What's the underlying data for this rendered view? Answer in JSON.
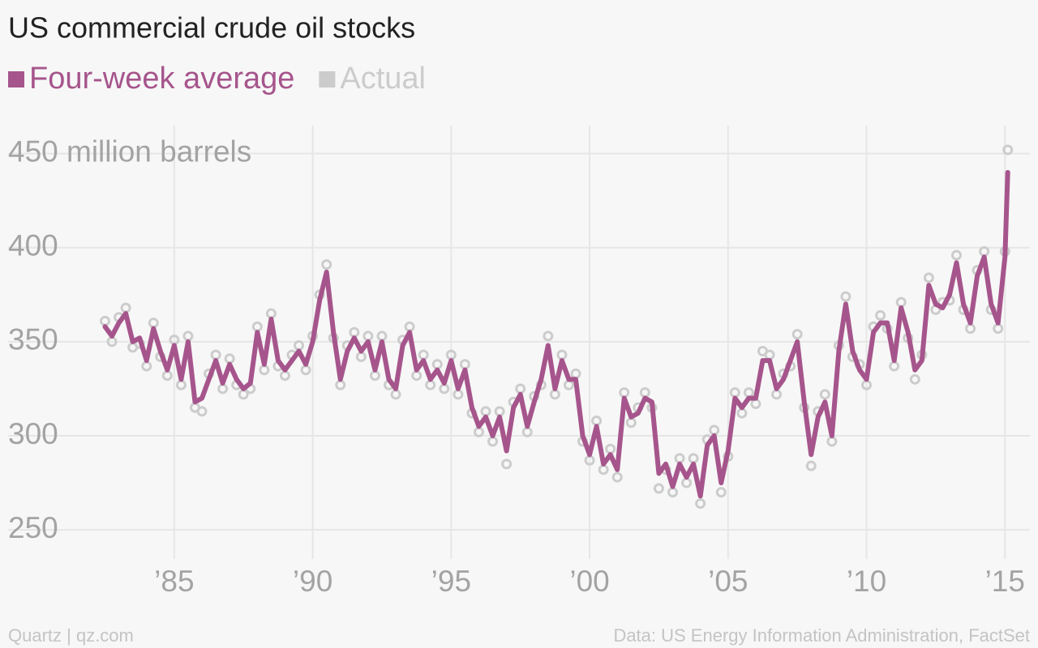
{
  "chart_data": {
    "type": "line",
    "title": "US commercial crude oil stocks",
    "credit": "Quartz | qz.com",
    "source": "Data: US Energy Information Administration, FactSet",
    "x": [
      1982.5,
      1982.75,
      1983,
      1983.25,
      1983.5,
      1983.75,
      1984,
      1984.25,
      1984.5,
      1984.75,
      1985,
      1985.25,
      1985.5,
      1985.75,
      1986,
      1986.25,
      1986.5,
      1986.75,
      1987,
      1987.25,
      1987.5,
      1987.75,
      1988,
      1988.25,
      1988.5,
      1988.75,
      1989,
      1989.25,
      1989.5,
      1989.75,
      1990,
      1990.25,
      1990.5,
      1990.75,
      1991,
      1991.25,
      1991.5,
      1991.75,
      1992,
      1992.25,
      1992.5,
      1992.75,
      1993,
      1993.25,
      1993.5,
      1993.75,
      1994,
      1994.25,
      1994.5,
      1994.75,
      1995,
      1995.25,
      1995.5,
      1995.75,
      1996,
      1996.25,
      1996.5,
      1996.75,
      1997,
      1997.25,
      1997.5,
      1997.75,
      1998,
      1998.25,
      1998.5,
      1998.75,
      1999,
      1999.25,
      1999.5,
      1999.75,
      2000,
      2000.25,
      2000.5,
      2000.75,
      2001,
      2001.25,
      2001.5,
      2001.75,
      2002,
      2002.25,
      2002.5,
      2002.75,
      2003,
      2003.25,
      2003.5,
      2003.75,
      2004,
      2004.25,
      2004.5,
      2004.75,
      2005,
      2005.25,
      2005.5,
      2005.75,
      2006,
      2006.25,
      2006.5,
      2006.75,
      2007,
      2007.25,
      2007.5,
      2007.75,
      2008,
      2008.25,
      2008.5,
      2008.75,
      2009,
      2009.25,
      2009.5,
      2009.75,
      2010,
      2010.25,
      2010.5,
      2010.75,
      2011,
      2011.25,
      2011.5,
      2011.75,
      2012,
      2012.25,
      2012.5,
      2012.75,
      2013,
      2013.25,
      2013.5,
      2013.75,
      2014,
      2014.25,
      2014.5,
      2014.75,
      2015,
      2015.1
    ],
    "series": [
      {
        "name": "Four-week average",
        "color": "#a6558c",
        "values": [
          358,
          353,
          360,
          365,
          350,
          352,
          340,
          357,
          345,
          335,
          348,
          330,
          350,
          318,
          320,
          330,
          340,
          328,
          338,
          330,
          325,
          328,
          355,
          338,
          362,
          340,
          335,
          340,
          345,
          338,
          350,
          372,
          387,
          355,
          330,
          345,
          352,
          345,
          350,
          335,
          350,
          330,
          325,
          348,
          355,
          335,
          340,
          330,
          335,
          328,
          340,
          325,
          335,
          315,
          305,
          310,
          300,
          310,
          292,
          315,
          322,
          305,
          318,
          330,
          348,
          325,
          340,
          330,
          330,
          300,
          290,
          305,
          285,
          290,
          282,
          320,
          310,
          312,
          320,
          318,
          280,
          285,
          273,
          285,
          278,
          285,
          268,
          295,
          300,
          275,
          292,
          320,
          315,
          320,
          320,
          340,
          340,
          325,
          330,
          340,
          350,
          318,
          290,
          310,
          318,
          300,
          345,
          370,
          345,
          335,
          330,
          355,
          360,
          360,
          340,
          368,
          355,
          335,
          340,
          380,
          370,
          368,
          375,
          392,
          370,
          360,
          385,
          395,
          370,
          360,
          395,
          440
        ]
      },
      {
        "name": "Actual",
        "color": "#cccccc",
        "values": [
          361,
          350,
          363,
          368,
          347,
          349,
          337,
          360,
          342,
          332,
          351,
          327,
          353,
          315,
          313,
          333,
          343,
          325,
          341,
          327,
          322,
          325,
          358,
          335,
          365,
          337,
          332,
          343,
          348,
          335,
          353,
          375,
          391,
          352,
          327,
          348,
          355,
          342,
          353,
          332,
          353,
          327,
          322,
          351,
          358,
          332,
          343,
          327,
          338,
          325,
          343,
          322,
          338,
          312,
          302,
          313,
          297,
          313,
          285,
          318,
          325,
          302,
          321,
          327,
          353,
          322,
          343,
          327,
          333,
          297,
          287,
          308,
          282,
          293,
          278,
          323,
          307,
          315,
          323,
          315,
          272,
          282,
          270,
          288,
          275,
          288,
          264,
          298,
          303,
          270,
          289,
          323,
          312,
          323,
          317,
          345,
          343,
          322,
          333,
          337,
          354,
          315,
          284,
          313,
          322,
          297,
          348,
          374,
          342,
          338,
          327,
          358,
          364,
          357,
          337,
          371,
          352,
          330,
          343,
          384,
          367,
          371,
          372,
          396,
          367,
          357,
          388,
          398,
          367,
          357,
          398,
          452
        ]
      }
    ],
    "xlim": [
      1979,
      2015.9
    ],
    "xticks": [
      {
        "value": 1985,
        "label": "’85"
      },
      {
        "value": 1990,
        "label": "’90"
      },
      {
        "value": 1995,
        "label": "’95"
      },
      {
        "value": 2000,
        "label": "’00"
      },
      {
        "value": 2005,
        "label": "’05"
      },
      {
        "value": 2010,
        "label": "’10"
      },
      {
        "value": 2015,
        "label": "’15"
      }
    ],
    "ylim": [
      235,
      455
    ],
    "yticks": [
      250,
      300,
      350,
      400,
      {
        "value": 450,
        "label": "450 million barrels"
      }
    ],
    "grid": true
  }
}
